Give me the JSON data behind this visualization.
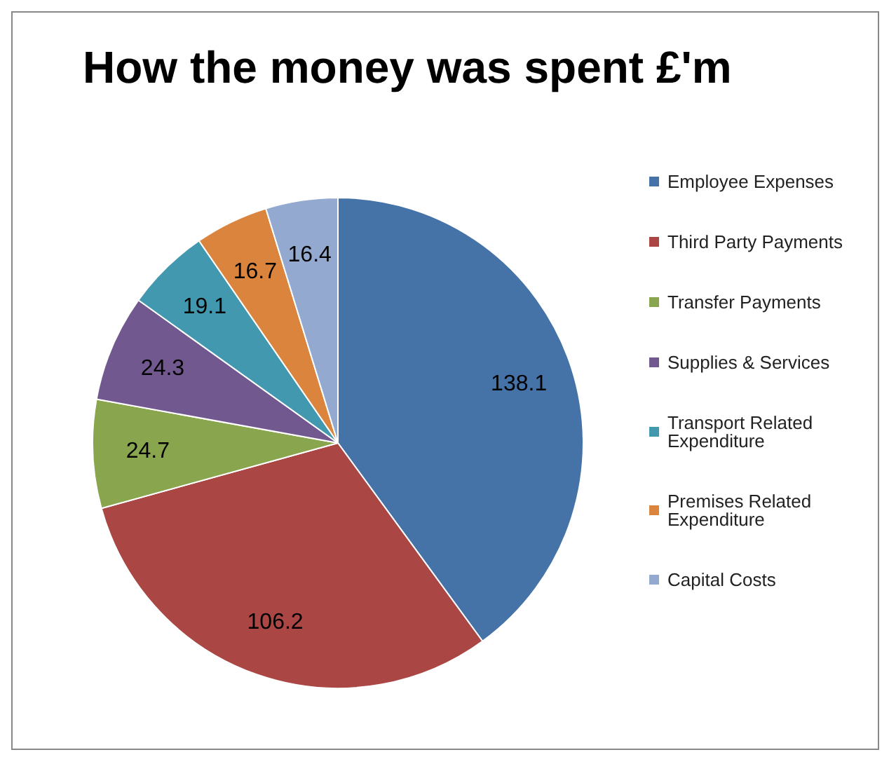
{
  "chart_data": {
    "type": "pie",
    "title": "How the money was spent £'m",
    "categories": [
      "Employee Expenses",
      "Third Party Payments",
      "Transfer Payments",
      "Supplies & Services",
      "Transport Related Expenditure",
      "Premises Related Expenditure",
      "Capital Costs"
    ],
    "values": [
      138.1,
      106.2,
      24.7,
      24.3,
      19.1,
      16.7,
      16.4
    ],
    "colors": [
      "#4572a7",
      "#aa4643",
      "#89a54e",
      "#71588f",
      "#4198af",
      "#db843d",
      "#93a9cf"
    ],
    "data_labels": true,
    "legend": "right"
  }
}
